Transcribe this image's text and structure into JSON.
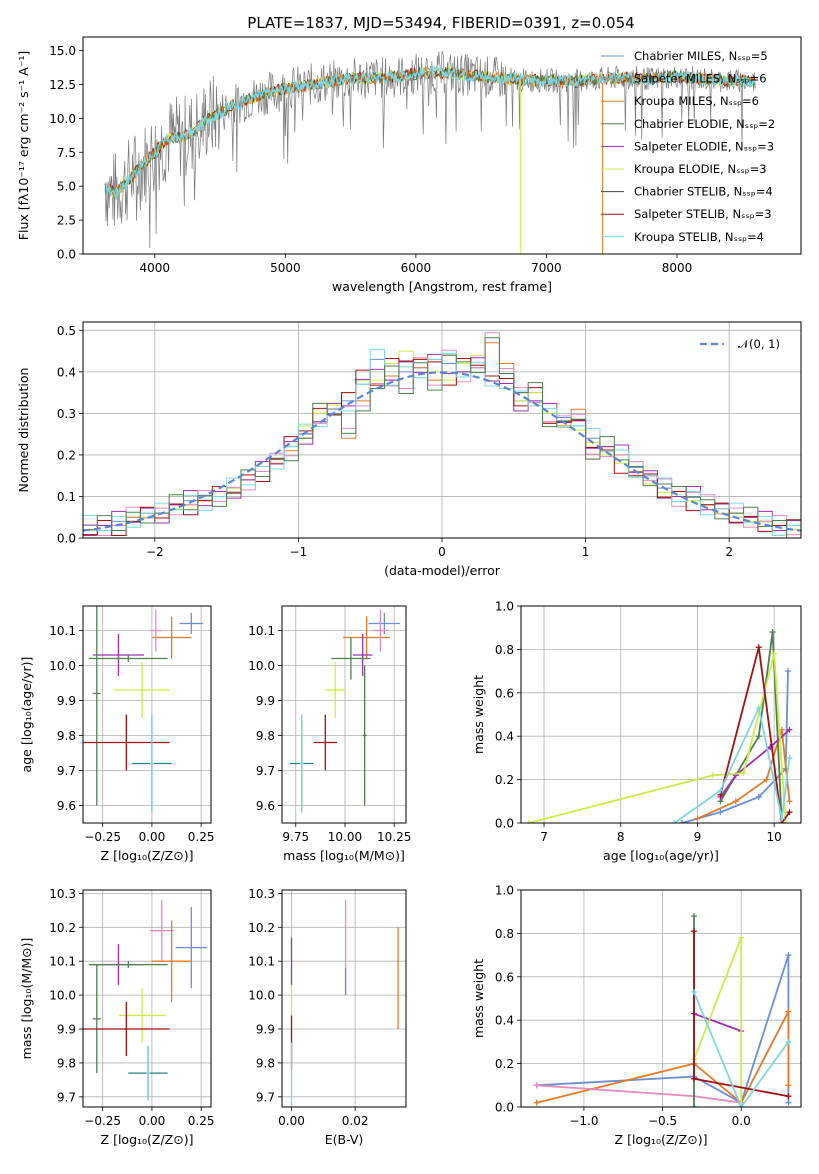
{
  "colors": {
    "chabrier_miles": "#6a8fd8",
    "salpeter_miles": "#9b9b9b",
    "kroupa_miles": "#e07b2a",
    "chabrier_elodie": "#4f7f4f",
    "salpeter_elodie": "#9b30b0",
    "kroupa_elodie": "#c9ec4a",
    "chabrier_stelib": "#444444",
    "salpeter_stelib": "#a01010",
    "kroupa_stelib": "#7fd6e0",
    "pink": "#e58bc0",
    "teal": "#2b7f7f"
  },
  "chart_data": [
    {
      "type": "line",
      "title": "PLATE=1837, MJD=53494, FIBERID=0391, z=0.054",
      "xlabel": "wavelength [Angstrom, rest frame]",
      "ylabel": "Flux [fλ10⁻¹⁷ erg cm⁻² s⁻¹ A⁻¹]",
      "xlim": [
        3450,
        8950
      ],
      "ylim": [
        0,
        16
      ],
      "xticks": [
        "4000",
        "5000",
        "6000",
        "7000",
        "8000"
      ],
      "yticks": [
        "0.0",
        "2.5",
        "5.0",
        "7.5",
        "10.0",
        "12.5",
        "15.0"
      ],
      "legend_position": "top-right",
      "legend": [
        "Chabrier MILES, Nₛₛₚ=5",
        "Salpeter MILES, Nₛₛₚ=6",
        "Kroupa MILES, Nₛₛₚ=6",
        "Chabrier ELODIE, Nₛₛₚ=2",
        "Salpeter ELODIE, Nₛₛₚ=3",
        "Kroupa ELODIE, Nₛₛₚ=3",
        "Chabrier STELIB, Nₛₛₚ=4",
        "Salpeter STELIB, Nₛₛₚ=3",
        "Kroupa STELIB, Nₛₛₚ=4"
      ],
      "model_continuum": {
        "x": [
          3600,
          3700,
          3800,
          3900,
          4000,
          4100,
          4200,
          4300,
          4400,
          4500,
          4600,
          4800,
          5000,
          5200,
          5400,
          5600,
          5800,
          6000,
          6200,
          6400,
          6600,
          6800,
          7000,
          7200,
          7400,
          7600,
          7800,
          8000,
          8200,
          8400,
          8600
        ],
        "y": [
          5.0,
          4.5,
          5.5,
          6.5,
          7.5,
          8.5,
          8.6,
          9.0,
          10.0,
          10.4,
          11.0,
          11.7,
          12.2,
          12.5,
          12.8,
          13.0,
          13.0,
          13.3,
          13.4,
          13.2,
          13.0,
          12.8,
          12.8,
          12.7,
          12.9,
          13.0,
          12.9,
          13.1,
          12.9,
          12.8,
          12.7
        ]
      }
    },
    {
      "type": "line",
      "xlabel": "(data-model)/error",
      "ylabel": "Normed distribution",
      "xlim": [
        -2.5,
        2.5
      ],
      "ylim": [
        0,
        0.52
      ],
      "xticks": [
        "−2",
        "−1",
        "0",
        "1",
        "2"
      ],
      "yticks": [
        "0.0",
        "0.1",
        "0.2",
        "0.3",
        "0.4",
        "0.5"
      ],
      "legend": [
        "𝒩(0, 1)"
      ],
      "legend_position": "top-right",
      "histogram_bins_x": [
        -2.5,
        -2.4,
        -2.3,
        -2.2,
        -2.1,
        -2.0,
        -1.9,
        -1.8,
        -1.7,
        -1.6,
        -1.5,
        -1.4,
        -1.3,
        -1.2,
        -1.1,
        -1.0,
        -0.9,
        -0.8,
        -0.7,
        -0.6,
        -0.5,
        -0.4,
        -0.3,
        -0.2,
        -0.1,
        0.0,
        0.1,
        0.2,
        0.3,
        0.4,
        0.5,
        0.6,
        0.7,
        0.8,
        0.9,
        1.0,
        1.1,
        1.2,
        1.3,
        1.4,
        1.5,
        1.6,
        1.7,
        1.8,
        1.9,
        2.0,
        2.1,
        2.2,
        2.3,
        2.4
      ],
      "series": [
        {
          "values": [
            0.03,
            0.03,
            0.04,
            0.05,
            0.06,
            0.06,
            0.08,
            0.09,
            0.09,
            0.1,
            0.12,
            0.14,
            0.16,
            0.19,
            0.22,
            0.25,
            0.28,
            0.3,
            0.33,
            0.37,
            0.43,
            0.38,
            0.4,
            0.41,
            0.43,
            0.42,
            0.4,
            0.41,
            0.39,
            0.36,
            0.33,
            0.33,
            0.3,
            0.29,
            0.27,
            0.24,
            0.22,
            0.2,
            0.17,
            0.15,
            0.12,
            0.1,
            0.1,
            0.08,
            0.07,
            0.06,
            0.05,
            0.04,
            0.03,
            0.03
          ]
        },
        {
          "values": [
            0.02,
            0.03,
            0.03,
            0.05,
            0.06,
            0.06,
            0.08,
            0.08,
            0.09,
            0.1,
            0.11,
            0.14,
            0.16,
            0.18,
            0.21,
            0.24,
            0.3,
            0.31,
            0.24,
            0.33,
            0.36,
            0.39,
            0.36,
            0.41,
            0.38,
            0.44,
            0.4,
            0.41,
            0.47,
            0.42,
            0.35,
            0.35,
            0.28,
            0.27,
            0.31,
            0.19,
            0.22,
            0.2,
            0.16,
            0.15,
            0.13,
            0.1,
            0.11,
            0.08,
            0.07,
            0.06,
            0.05,
            0.04,
            0.03,
            0.02
          ]
        },
        {
          "values": [
            0.02,
            0.03,
            0.03,
            0.04,
            0.05,
            0.06,
            0.07,
            0.08,
            0.09,
            0.1,
            0.12,
            0.14,
            0.16,
            0.19,
            0.22,
            0.27,
            0.3,
            0.32,
            0.35,
            0.38,
            0.38,
            0.42,
            0.45,
            0.43,
            0.4,
            0.38,
            0.42,
            0.44,
            0.39,
            0.36,
            0.33,
            0.35,
            0.3,
            0.28,
            0.26,
            0.23,
            0.2,
            0.18,
            0.15,
            0.13,
            0.11,
            0.1,
            0.09,
            0.08,
            0.06,
            0.05,
            0.04,
            0.04,
            0.03,
            0.02
          ]
        }
      ],
      "normal_curve": "N(0,1) dashed"
    },
    {
      "type": "scatter",
      "xlabel": "Z [log₁₀(Z/Z⊙)]",
      "ylabel": "age  [log₁₀(age/yr)]",
      "xlim": [
        -0.35,
        0.3
      ],
      "ylim": [
        9.55,
        10.17
      ],
      "xticks": [
        "−0.25",
        "0.00",
        "0.25"
      ],
      "yticks": [
        "9.6",
        "9.7",
        "9.8",
        "9.9",
        "10.0",
        "10.1"
      ],
      "points": [
        {
          "x": 0.2,
          "y": 10.12,
          "xerr": 0.06,
          "yerr": 0.03,
          "color": "chabrier_miles"
        },
        {
          "x": 0.1,
          "y": 10.08,
          "xerr": 0.1,
          "yerr": 0.06,
          "color": "kroupa_miles"
        },
        {
          "x": 0.02,
          "y": 10.1,
          "xerr": 0.03,
          "yerr": 0.06,
          "color": "pink"
        },
        {
          "x": -0.17,
          "y": 10.03,
          "xerr": 0.13,
          "yerr": 0.06,
          "color": "salpeter_elodie"
        },
        {
          "x": -0.12,
          "y": 10.02,
          "xerr": 0.2,
          "yerr": 0.01,
          "color": "chabrier_elodie"
        },
        {
          "x": -0.28,
          "y": 9.92,
          "xerr": 0.02,
          "yerr": 0.32,
          "color": "chabrier_elodie"
        },
        {
          "x": -0.05,
          "y": 9.93,
          "xerr": 0.14,
          "yerr": 0.08,
          "color": "kroupa_elodie"
        },
        {
          "x": -0.13,
          "y": 9.78,
          "xerr": 0.22,
          "yerr": 0.08,
          "color": "salpeter_stelib"
        },
        {
          "x": 0.0,
          "y": 9.72,
          "xerr": 0.1,
          "yerr": 0.14,
          "color": "teal"
        },
        {
          "x": 0.0,
          "y": 9.72,
          "xerr": 0.01,
          "yerr": 0.14,
          "color": "kroupa_stelib"
        }
      ]
    },
    {
      "type": "scatter",
      "xlabel": "mass [log₁₀(M/M⊙)]",
      "ylabel": "",
      "xlim": [
        9.68,
        10.31
      ],
      "ylim": [
        9.55,
        10.17
      ],
      "xticks": [
        "9.75",
        "10.00",
        "10.25"
      ],
      "yticks": [
        "9.6",
        "9.7",
        "9.8",
        "9.9",
        "10.0",
        "10.1"
      ],
      "points": [
        {
          "x": 10.2,
          "y": 10.12,
          "xerr": 0.08,
          "yerr": 0.03,
          "color": "chabrier_miles"
        },
        {
          "x": 10.11,
          "y": 10.08,
          "xerr": 0.12,
          "yerr": 0.06,
          "color": "kroupa_miles"
        },
        {
          "x": 10.18,
          "y": 10.1,
          "xerr": 0.04,
          "yerr": 0.06,
          "color": "pink"
        },
        {
          "x": 10.09,
          "y": 10.03,
          "xerr": 0.05,
          "yerr": 0.06,
          "color": "salpeter_elodie"
        },
        {
          "x": 10.03,
          "y": 10.02,
          "xerr": 0.1,
          "yerr": 0.06,
          "color": "chabrier_elodie"
        },
        {
          "x": 10.1,
          "y": 9.8,
          "xerr": 0.01,
          "yerr": 0.2,
          "color": "chabrier_elodie"
        },
        {
          "x": 9.95,
          "y": 9.93,
          "xerr": 0.05,
          "yerr": 0.08,
          "color": "kroupa_elodie"
        },
        {
          "x": 9.9,
          "y": 9.78,
          "xerr": 0.06,
          "yerr": 0.08,
          "color": "salpeter_stelib"
        },
        {
          "x": 9.78,
          "y": 9.72,
          "xerr": 0.06,
          "yerr": 0.14,
          "color": "teal"
        },
        {
          "x": 9.78,
          "y": 9.72,
          "xerr": 0.01,
          "yerr": 0.14,
          "color": "kroupa_stelib"
        }
      ]
    },
    {
      "type": "line",
      "xlabel": "age  [log₁₀(age/yr)]",
      "ylabel": "mass weight",
      "xlim": [
        6.7,
        10.35
      ],
      "ylim": [
        0,
        1.0
      ],
      "xticks": [
        "7",
        "8",
        "9",
        "10"
      ],
      "yticks": [
        "0.0",
        "0.2",
        "0.4",
        "0.6",
        "0.8",
        "1.0"
      ],
      "series": [
        {
          "color": "chabrier_miles",
          "x": [
            8.8,
            9.3,
            9.8,
            10.15,
            10.18
          ],
          "y": [
            0.0,
            0.05,
            0.12,
            0.25,
            0.7
          ]
        },
        {
          "color": "kroupa_miles",
          "x": [
            9.0,
            9.5,
            9.9,
            10.1,
            10.2
          ],
          "y": [
            0.02,
            0.1,
            0.2,
            0.43,
            0.1
          ]
        },
        {
          "color": "chabrier_elodie",
          "x": [
            9.3,
            9.8,
            9.98,
            10.1
          ],
          "y": [
            0.1,
            0.4,
            0.88,
            0.0
          ]
        },
        {
          "color": "salpeter_elodie",
          "x": [
            9.3,
            9.5,
            9.95,
            10.2
          ],
          "y": [
            0.12,
            0.22,
            0.35,
            0.43
          ]
        },
        {
          "color": "kroupa_elodie",
          "x": [
            6.8,
            9.2,
            9.6,
            10.0,
            10.15
          ],
          "y": [
            0.0,
            0.22,
            0.23,
            0.78,
            0.0
          ]
        },
        {
          "color": "salpeter_stelib",
          "x": [
            9.3,
            9.8,
            10.1,
            10.2
          ],
          "y": [
            0.13,
            0.81,
            0.0,
            0.05
          ]
        },
        {
          "color": "kroupa_stelib",
          "x": [
            8.7,
            9.3,
            9.8,
            10.1,
            10.2
          ],
          "y": [
            0.0,
            0.15,
            0.53,
            0.02,
            0.3
          ]
        }
      ]
    },
    {
      "type": "scatter",
      "xlabel": "Z [log₁₀(Z/Z⊙)]",
      "ylabel": "mass [log₁₀(M/M⊙)]",
      "xlim": [
        -0.35,
        0.3
      ],
      "ylim": [
        9.67,
        10.31
      ],
      "xticks": [
        "−0.25",
        "0.00",
        "0.25"
      ],
      "yticks": [
        "9.7",
        "9.8",
        "9.9",
        "10.0",
        "10.1",
        "10.2",
        "10.3"
      ],
      "points": [
        {
          "x": 0.2,
          "y": 10.14,
          "xerr": 0.08,
          "yerr": 0.12,
          "color": "chabrier_miles"
        },
        {
          "x": 0.05,
          "y": 10.19,
          "xerr": 0.06,
          "yerr": 0.09,
          "color": "pink"
        },
        {
          "x": 0.1,
          "y": 10.1,
          "xerr": 0.1,
          "yerr": 0.12,
          "color": "kroupa_miles"
        },
        {
          "x": -0.17,
          "y": 10.09,
          "xerr": 0.13,
          "yerr": 0.06,
          "color": "salpeter_elodie"
        },
        {
          "x": -0.12,
          "y": 10.09,
          "xerr": 0.2,
          "yerr": 0.01,
          "color": "chabrier_elodie"
        },
        {
          "x": -0.28,
          "y": 9.93,
          "xerr": 0.02,
          "yerr": 0.16,
          "color": "chabrier_elodie"
        },
        {
          "x": -0.05,
          "y": 9.94,
          "xerr": 0.12,
          "yerr": 0.08,
          "color": "kroupa_elodie"
        },
        {
          "x": -0.13,
          "y": 9.9,
          "xerr": 0.22,
          "yerr": 0.08,
          "color": "salpeter_stelib"
        },
        {
          "x": -0.02,
          "y": 9.77,
          "xerr": 0.1,
          "yerr": 0.08,
          "color": "teal"
        },
        {
          "x": -0.02,
          "y": 9.77,
          "xerr": 0.01,
          "yerr": 0.08,
          "color": "kroupa_stelib"
        }
      ]
    },
    {
      "type": "scatter",
      "xlabel": "E(B-V)",
      "ylabel": "",
      "xlim": [
        -0.003,
        0.036
      ],
      "ylim": [
        9.67,
        10.31
      ],
      "xticks": [
        "0.00",
        "0.02"
      ],
      "yticks": [
        "9.7",
        "9.8",
        "9.9",
        "10.0",
        "10.1",
        "10.2",
        "10.3"
      ],
      "points": [
        {
          "x": 0.0,
          "y": 10.1,
          "xerr": 0.0,
          "yerr": 0.07,
          "color": "salpeter_elodie"
        },
        {
          "x": 0.0,
          "y": 9.98,
          "xerr": 0.0,
          "yerr": 0.05,
          "color": "kroupa_elodie"
        },
        {
          "x": 0.0,
          "y": 9.86,
          "xerr": 0.0,
          "yerr": 0.08,
          "color": "salpeter_stelib"
        },
        {
          "x": 0.0,
          "y": 9.76,
          "xerr": 0.0,
          "yerr": 0.1,
          "color": "kroupa_stelib"
        },
        {
          "x": 0.017,
          "y": 10.14,
          "xerr": 0.0,
          "yerr": 0.14,
          "color": "pink"
        },
        {
          "x": 0.017,
          "y": 10.04,
          "xerr": 0.0,
          "yerr": 0.04,
          "color": "chabrier_miles"
        },
        {
          "x": 0.0335,
          "y": 10.05,
          "xerr": 0.0,
          "yerr": 0.15,
          "color": "kroupa_miles"
        }
      ]
    },
    {
      "type": "line",
      "xlabel": "Z [log₁₀(Z/Z⊙)]",
      "ylabel": "mass weight",
      "xlim": [
        -1.4,
        0.38
      ],
      "ylim": [
        0,
        1.0
      ],
      "xticks": [
        "−1.0",
        "−0.5",
        "0.0"
      ],
      "yticks": [
        "0.0",
        "0.2",
        "0.4",
        "0.6",
        "0.8",
        "1.0"
      ],
      "series": [
        {
          "color": "chabrier_miles",
          "x": [
            -1.3,
            -0.3,
            0.0,
            0.3,
            0.3
          ],
          "y": [
            0.1,
            0.14,
            0.02,
            0.7,
            0.02
          ]
        },
        {
          "color": "kroupa_miles",
          "x": [
            -1.3,
            -0.3,
            0.0,
            0.3,
            0.3
          ],
          "y": [
            0.02,
            0.2,
            0.02,
            0.44,
            0.1
          ]
        },
        {
          "color": "pink",
          "x": [
            -1.3,
            -0.3,
            0.0
          ],
          "y": [
            0.1,
            0.05,
            0.02
          ]
        },
        {
          "color": "chabrier_elodie",
          "x": [
            -0.3,
            -0.3
          ],
          "y": [
            0.88,
            0.0
          ]
        },
        {
          "color": "salpeter_elodie",
          "x": [
            -0.3,
            0.0
          ],
          "y": [
            0.43,
            0.35
          ]
        },
        {
          "color": "kroupa_elodie",
          "x": [
            -0.3,
            0.0,
            0.0
          ],
          "y": [
            0.22,
            0.78,
            0.0
          ]
        },
        {
          "color": "salpeter_stelib",
          "x": [
            -0.3,
            -0.3,
            0.3
          ],
          "y": [
            0.81,
            0.13,
            0.05
          ]
        },
        {
          "color": "kroupa_stelib",
          "x": [
            -0.3,
            0.0,
            0.3
          ],
          "y": [
            0.53,
            0.0,
            0.3
          ]
        }
      ]
    }
  ]
}
